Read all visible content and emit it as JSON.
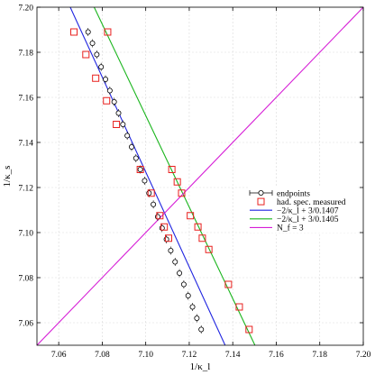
{
  "chart_data": {
    "type": "scatter",
    "xlabel": "1/κ_l",
    "ylabel": "1/κ_s",
    "xlim": [
      7.05,
      7.2
    ],
    "ylim": [
      7.05,
      7.2
    ],
    "xticks": [
      "7.06",
      "7.08",
      "7.10",
      "7.12",
      "7.14",
      "7.16",
      "7.18",
      "7.20"
    ],
    "yticks": [
      "7.06",
      "7.08",
      "7.10",
      "7.12",
      "7.14",
      "7.16",
      "7.18",
      "7.20"
    ],
    "grid": true,
    "legend_position": "right-middle",
    "series": [
      {
        "name": "endpoints",
        "kind": "points-with-errorbars",
        "marker": "circle",
        "color": "#000000",
        "points": [
          [
            7.0735,
            7.189
          ],
          [
            7.0755,
            7.184
          ],
          [
            7.0775,
            7.179
          ],
          [
            7.0795,
            7.1735
          ],
          [
            7.0815,
            7.168
          ],
          [
            7.0835,
            7.163
          ],
          [
            7.0855,
            7.158
          ],
          [
            7.0875,
            7.153
          ],
          [
            7.0895,
            7.148
          ],
          [
            7.0915,
            7.143
          ],
          [
            7.0935,
            7.138
          ],
          [
            7.0955,
            7.133
          ],
          [
            7.0975,
            7.128
          ],
          [
            7.0995,
            7.123
          ],
          [
            7.1015,
            7.1175
          ],
          [
            7.1035,
            7.1125
          ],
          [
            7.1055,
            7.107
          ],
          [
            7.1075,
            7.102
          ],
          [
            7.1095,
            7.097
          ],
          [
            7.1115,
            7.092
          ],
          [
            7.1135,
            7.087
          ],
          [
            7.1155,
            7.082
          ],
          [
            7.1175,
            7.077
          ],
          [
            7.1195,
            7.072
          ],
          [
            7.1215,
            7.067
          ],
          [
            7.1235,
            7.062
          ],
          [
            7.1255,
            7.057
          ]
        ]
      },
      {
        "name": "had. spec. measured",
        "kind": "points",
        "marker": "square",
        "color": "#e8201e",
        "points": [
          [
            7.067,
            7.189
          ],
          [
            7.0725,
            7.179
          ],
          [
            7.077,
            7.1685
          ],
          [
            7.082,
            7.1585
          ],
          [
            7.0865,
            7.148
          ],
          [
            7.0975,
            7.128
          ],
          [
            7.1025,
            7.1175
          ],
          [
            7.1065,
            7.1075
          ],
          [
            7.1085,
            7.1025
          ],
          [
            7.1105,
            7.0975
          ],
          [
            7.0825,
            7.189
          ],
          [
            7.112,
            7.128
          ],
          [
            7.1145,
            7.1225
          ],
          [
            7.1165,
            7.1175
          ],
          [
            7.1205,
            7.1075
          ],
          [
            7.124,
            7.1025
          ],
          [
            7.126,
            7.0975
          ],
          [
            7.129,
            7.0925
          ],
          [
            7.138,
            7.077
          ],
          [
            7.143,
            7.067
          ],
          [
            7.1475,
            7.057
          ]
        ]
      },
      {
        "name": "−2/κ_l + 3/0.1407",
        "kind": "line",
        "color": "#1f24e0",
        "points": [
          [
            7.0653,
            7.2
          ],
          [
            7.1365,
            7.05
          ]
        ]
      },
      {
        "name": "−2/κ_l + 3/0.1405",
        "kind": "line",
        "color": "#19b51c",
        "points": [
          [
            7.0763,
            7.2
          ],
          [
            7.1502,
            7.05
          ]
        ]
      },
      {
        "name": "N_f = 3",
        "kind": "line",
        "color": "#d61ed6",
        "points": [
          [
            7.05,
            7.05
          ],
          [
            7.2,
            7.2
          ]
        ]
      }
    ]
  }
}
